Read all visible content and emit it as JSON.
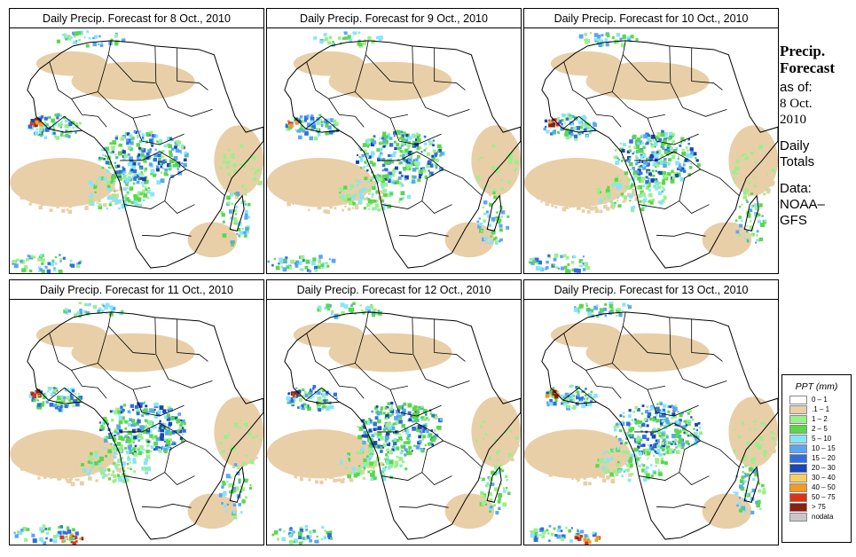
{
  "panels": [
    {
      "title": "Daily Precip. Forecast for  8 Oct., 2010",
      "seed": 11
    },
    {
      "title": "Daily Precip. Forecast for  9 Oct., 2010",
      "seed": 23
    },
    {
      "title": "Daily Precip. Forecast for  10 Oct., 2010",
      "seed": 37
    },
    {
      "title": "Daily Precip. Forecast for  11 Oct., 2010",
      "seed": 41
    },
    {
      "title": "Daily Precip. Forecast for  12 Oct., 2010",
      "seed": 53
    },
    {
      "title": "Daily Precip. Forecast for  13 Oct., 2010",
      "seed": 67
    }
  ],
  "sidebar": {
    "title_line1": "Precip.",
    "title_line2": "Forecast",
    "asof": "as of:",
    "date_line1": "8 Oct.",
    "date_line2": "2010",
    "daily_line1": "Daily",
    "daily_line2": "Totals",
    "data_line1": "Data:",
    "data_line2": "NOAA–",
    "data_line3": "GFS"
  },
  "legend": {
    "title": "PPT (mm)",
    "items": [
      {
        "label": "0 – 1",
        "color": "#ffffff"
      },
      {
        "label": ".1 – 1",
        "color": "#e8cfa8"
      },
      {
        "label": "1 – 2",
        "color": "#9af08a"
      },
      {
        "label": "2 – 5",
        "color": "#59d84a"
      },
      {
        "label": "5 – 10",
        "color": "#86e4ff"
      },
      {
        "label": "10 – 15",
        "color": "#5aa6f5"
      },
      {
        "label": "15 – 20",
        "color": "#2f6fe0"
      },
      {
        "label": "20 – 30",
        "color": "#1845b8"
      },
      {
        "label": "30 – 40",
        "color": "#f5d060"
      },
      {
        "label": "40 – 50",
        "color": "#f59a1e"
      },
      {
        "label": "50 – 75",
        "color": "#e03212"
      },
      {
        "label": "> 75",
        "color": "#8a2010"
      },
      {
        "label": "nodata",
        "color": "#c8c8c8"
      }
    ]
  }
}
